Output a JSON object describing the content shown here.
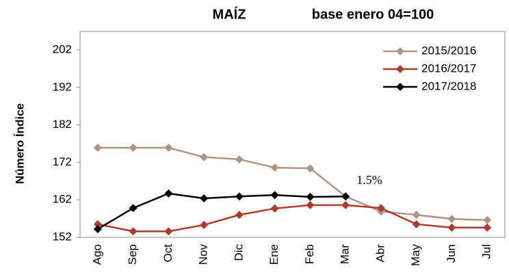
{
  "chart_data": {
    "type": "line",
    "title": "MAÍZ",
    "subtitle": "base enero 04=100",
    "y_label": "Número Índice",
    "annotation": "1.5%",
    "categories": [
      "Ago",
      "Sep",
      "Oct",
      "Nov",
      "Dic",
      "Ene",
      "Feb",
      "Mar",
      "Abr",
      "May",
      "Jun",
      "Jul"
    ],
    "series": [
      {
        "name": "2015/2016",
        "color": "#ad9585",
        "values": [
          175.9,
          175.9,
          175.9,
          173.4,
          172.8,
          170.6,
          170.4,
          162.9,
          158.9,
          158.0,
          156.9,
          156.6
        ]
      },
      {
        "name": "2016/2017",
        "color": "#b0392e",
        "values": [
          155.5,
          153.6,
          153.6,
          155.3,
          158.0,
          159.7,
          160.6,
          160.6,
          159.8,
          155.5,
          154.6,
          154.6
        ]
      },
      {
        "name": "2017/2018",
        "color": "#000000",
        "values": [
          154.2,
          159.8,
          163.7,
          162.4,
          162.9,
          163.3,
          162.8,
          162.9,
          null,
          null,
          null,
          null
        ]
      }
    ],
    "ylim": [
      152,
      202
    ],
    "yticks": [
      152,
      162,
      172,
      182,
      192,
      202
    ],
    "legend": "top-right"
  }
}
